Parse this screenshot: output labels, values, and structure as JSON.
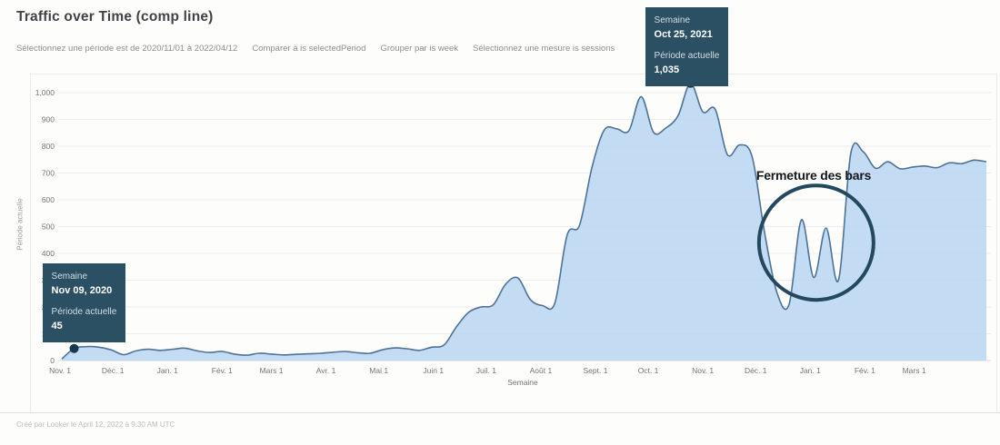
{
  "header": {
    "title": "Traffic over Time (comp line)",
    "filters": [
      "Sélectionnez une période est de 2020/11/01 à 2022/04/12",
      "Comparer à is selectedPeriod",
      "Grouper par is week",
      "Sélectionnez une mesure is sessions"
    ]
  },
  "chart_data": {
    "type": "area",
    "title": "Traffic over Time (comp line)",
    "xlabel": "Semaine",
    "ylabel": "Période actuelle",
    "series_name": "Période actuelle",
    "measure": "sessions",
    "x_unit": "week",
    "x_start": "2020/11/01",
    "x_end": "2022/04/12",
    "ylim": [
      0,
      1100
    ],
    "grid": true,
    "legend": "none",
    "y_ticks": [
      "0",
      "100",
      "200",
      "300",
      "400",
      "500",
      "600",
      "700",
      "800",
      "900",
      "1,000"
    ],
    "x_ticks": [
      {
        "label": "Nov. 1",
        "day": 0
      },
      {
        "label": "Déc. 1",
        "day": 30
      },
      {
        "label": "Jan. 1",
        "day": 61
      },
      {
        "label": "Fév. 1",
        "day": 92
      },
      {
        "label": "Mars 1",
        "day": 120
      },
      {
        "label": "Avr. 1",
        "day": 151
      },
      {
        "label": "Mai 1",
        "day": 181
      },
      {
        "label": "Juin 1",
        "day": 212
      },
      {
        "label": "Juil. 1",
        "day": 242
      },
      {
        "label": "Août 1",
        "day": 273
      },
      {
        "label": "Sept. 1",
        "day": 304
      },
      {
        "label": "Oct. 1",
        "day": 334
      },
      {
        "label": "Nov. 1",
        "day": 365
      },
      {
        "label": "Déc. 1",
        "day": 395
      },
      {
        "label": "Jan. 1",
        "day": 426
      },
      {
        "label": "Fév. 1",
        "day": 457
      },
      {
        "label": "Mars 1",
        "day": 485
      }
    ],
    "values": [
      6,
      45,
      52,
      50,
      40,
      22,
      36,
      42,
      38,
      42,
      46,
      36,
      30,
      34,
      24,
      20,
      27,
      24,
      21,
      23,
      25,
      27,
      31,
      34,
      29,
      27,
      40,
      47,
      44,
      38,
      50,
      58,
      125,
      180,
      200,
      208,
      285,
      308,
      228,
      205,
      215,
      470,
      505,
      720,
      860,
      865,
      858,
      985,
      852,
      868,
      915,
      1035,
      928,
      938,
      768,
      805,
      760,
      480,
      255,
      210,
      525,
      310,
      495,
      300,
      772,
      780,
      718,
      742,
      716,
      722,
      726,
      720,
      738,
      735,
      748,
      742
    ],
    "highlighted_points": [
      {
        "index": 1,
        "date": "Nov 09, 2020",
        "value": 45
      },
      {
        "index": 51,
        "date": "Oct 25, 2021",
        "value": 1035
      }
    ]
  },
  "tooltips": [
    {
      "dimension_label": "Semaine",
      "date": "Oct 25, 2021",
      "measure_label": "Période actuelle",
      "value": "1,035",
      "week_index": 51
    },
    {
      "dimension_label": "Semaine",
      "date": "Nov 09, 2020",
      "measure_label": "Période actuelle",
      "value": "45",
      "week_index": 1
    }
  ],
  "annotation": {
    "text": "Fermeture des bars",
    "week_anchor": 61.2,
    "value_anchor": 440,
    "radius": 63
  },
  "footer": {
    "created_text": "Créé par Looker le April 12, 2022 à 9:30 AM UTC"
  },
  "colors": {
    "area_fill": "#b7d3f1",
    "line": "#4e7396",
    "marker": "#16374e",
    "tooltip_bg": "#2b4f63",
    "annotation": "#24485e",
    "grid": "#ededed",
    "axis_text": "#757575"
  }
}
